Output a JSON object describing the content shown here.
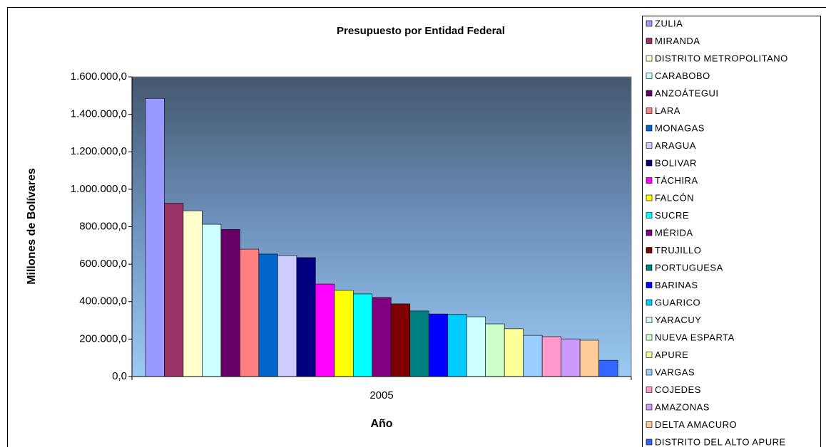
{
  "chart_data": {
    "type": "bar",
    "title": "Presupuesto por Entidad Federal",
    "x_label": "Año",
    "y_label": "Millones de Bolívares",
    "categories": [
      "2005"
    ],
    "ylim": [
      0,
      1600000
    ],
    "yticks": [
      {
        "value": 0,
        "label": "0,0"
      },
      {
        "value": 200000,
        "label": "200.000,0"
      },
      {
        "value": 400000,
        "label": "400.000,0"
      },
      {
        "value": 600000,
        "label": "600.000,0"
      },
      {
        "value": 800000,
        "label": "800.000,0"
      },
      {
        "value": 1000000,
        "label": "1.000.000,0"
      },
      {
        "value": 1200000,
        "label": "1.200.000,0"
      },
      {
        "value": 1400000,
        "label": "1.400.000,0"
      },
      {
        "value": 1600000,
        "label": "1.600.000,0"
      }
    ],
    "legend": "right",
    "series": [
      {
        "name": "ZULIA",
        "color": "#9999ff",
        "values": [
          1485000
        ]
      },
      {
        "name": "MIRANDA",
        "color": "#993366",
        "values": [
          925000
        ]
      },
      {
        "name": "DISTRITO METROPOLITANO",
        "color": "#ffffcc",
        "values": [
          885000
        ]
      },
      {
        "name": "CARABOBO",
        "color": "#ccffff",
        "values": [
          813000
        ]
      },
      {
        "name": "ANZOÁTEGUI",
        "color": "#660066",
        "values": [
          785000
        ]
      },
      {
        "name": "LARA",
        "color": "#ff8080",
        "values": [
          680000
        ]
      },
      {
        "name": "MONAGAS",
        "color": "#0066cc",
        "values": [
          654000
        ]
      },
      {
        "name": "ARAGUA",
        "color": "#ccccff",
        "values": [
          646000
        ]
      },
      {
        "name": "BOLIVAR",
        "color": "#000080",
        "values": [
          635000
        ]
      },
      {
        "name": "TÁCHIRA",
        "color": "#ff00ff",
        "values": [
          494000
        ]
      },
      {
        "name": "FALCÓN",
        "color": "#ffff00",
        "values": [
          460000
        ]
      },
      {
        "name": "SUCRE",
        "color": "#00ffff",
        "values": [
          441000
        ]
      },
      {
        "name": "MÉRIDA",
        "color": "#800080",
        "values": [
          422000
        ]
      },
      {
        "name": "TRUJILLO",
        "color": "#800000",
        "values": [
          388000
        ]
      },
      {
        "name": "PORTUGUESA",
        "color": "#008080",
        "values": [
          350000
        ]
      },
      {
        "name": "BARINAS",
        "color": "#0000ff",
        "values": [
          334000
        ]
      },
      {
        "name": "GUARICO",
        "color": "#00ccff",
        "values": [
          332000
        ]
      },
      {
        "name": "YARACUY",
        "color": "#ccffff",
        "values": [
          319000
        ]
      },
      {
        "name": "NUEVA ESPARTA",
        "color": "#ccffcc",
        "values": [
          281000
        ]
      },
      {
        "name": "APURE",
        "color": "#ffff99",
        "values": [
          255000
        ]
      },
      {
        "name": "VARGAS",
        "color": "#99ccff",
        "values": [
          220000
        ]
      },
      {
        "name": "COJEDES",
        "color": "#ff99cc",
        "values": [
          213000
        ]
      },
      {
        "name": "AMAZONAS",
        "color": "#cc99ff",
        "values": [
          201000
        ]
      },
      {
        "name": "DELTA AMACURO",
        "color": "#ffcc99",
        "values": [
          194000
        ]
      },
      {
        "name": "DISTRITO DEL ALTO APURE",
        "color": "#3366ff",
        "values": [
          87000
        ]
      }
    ]
  }
}
